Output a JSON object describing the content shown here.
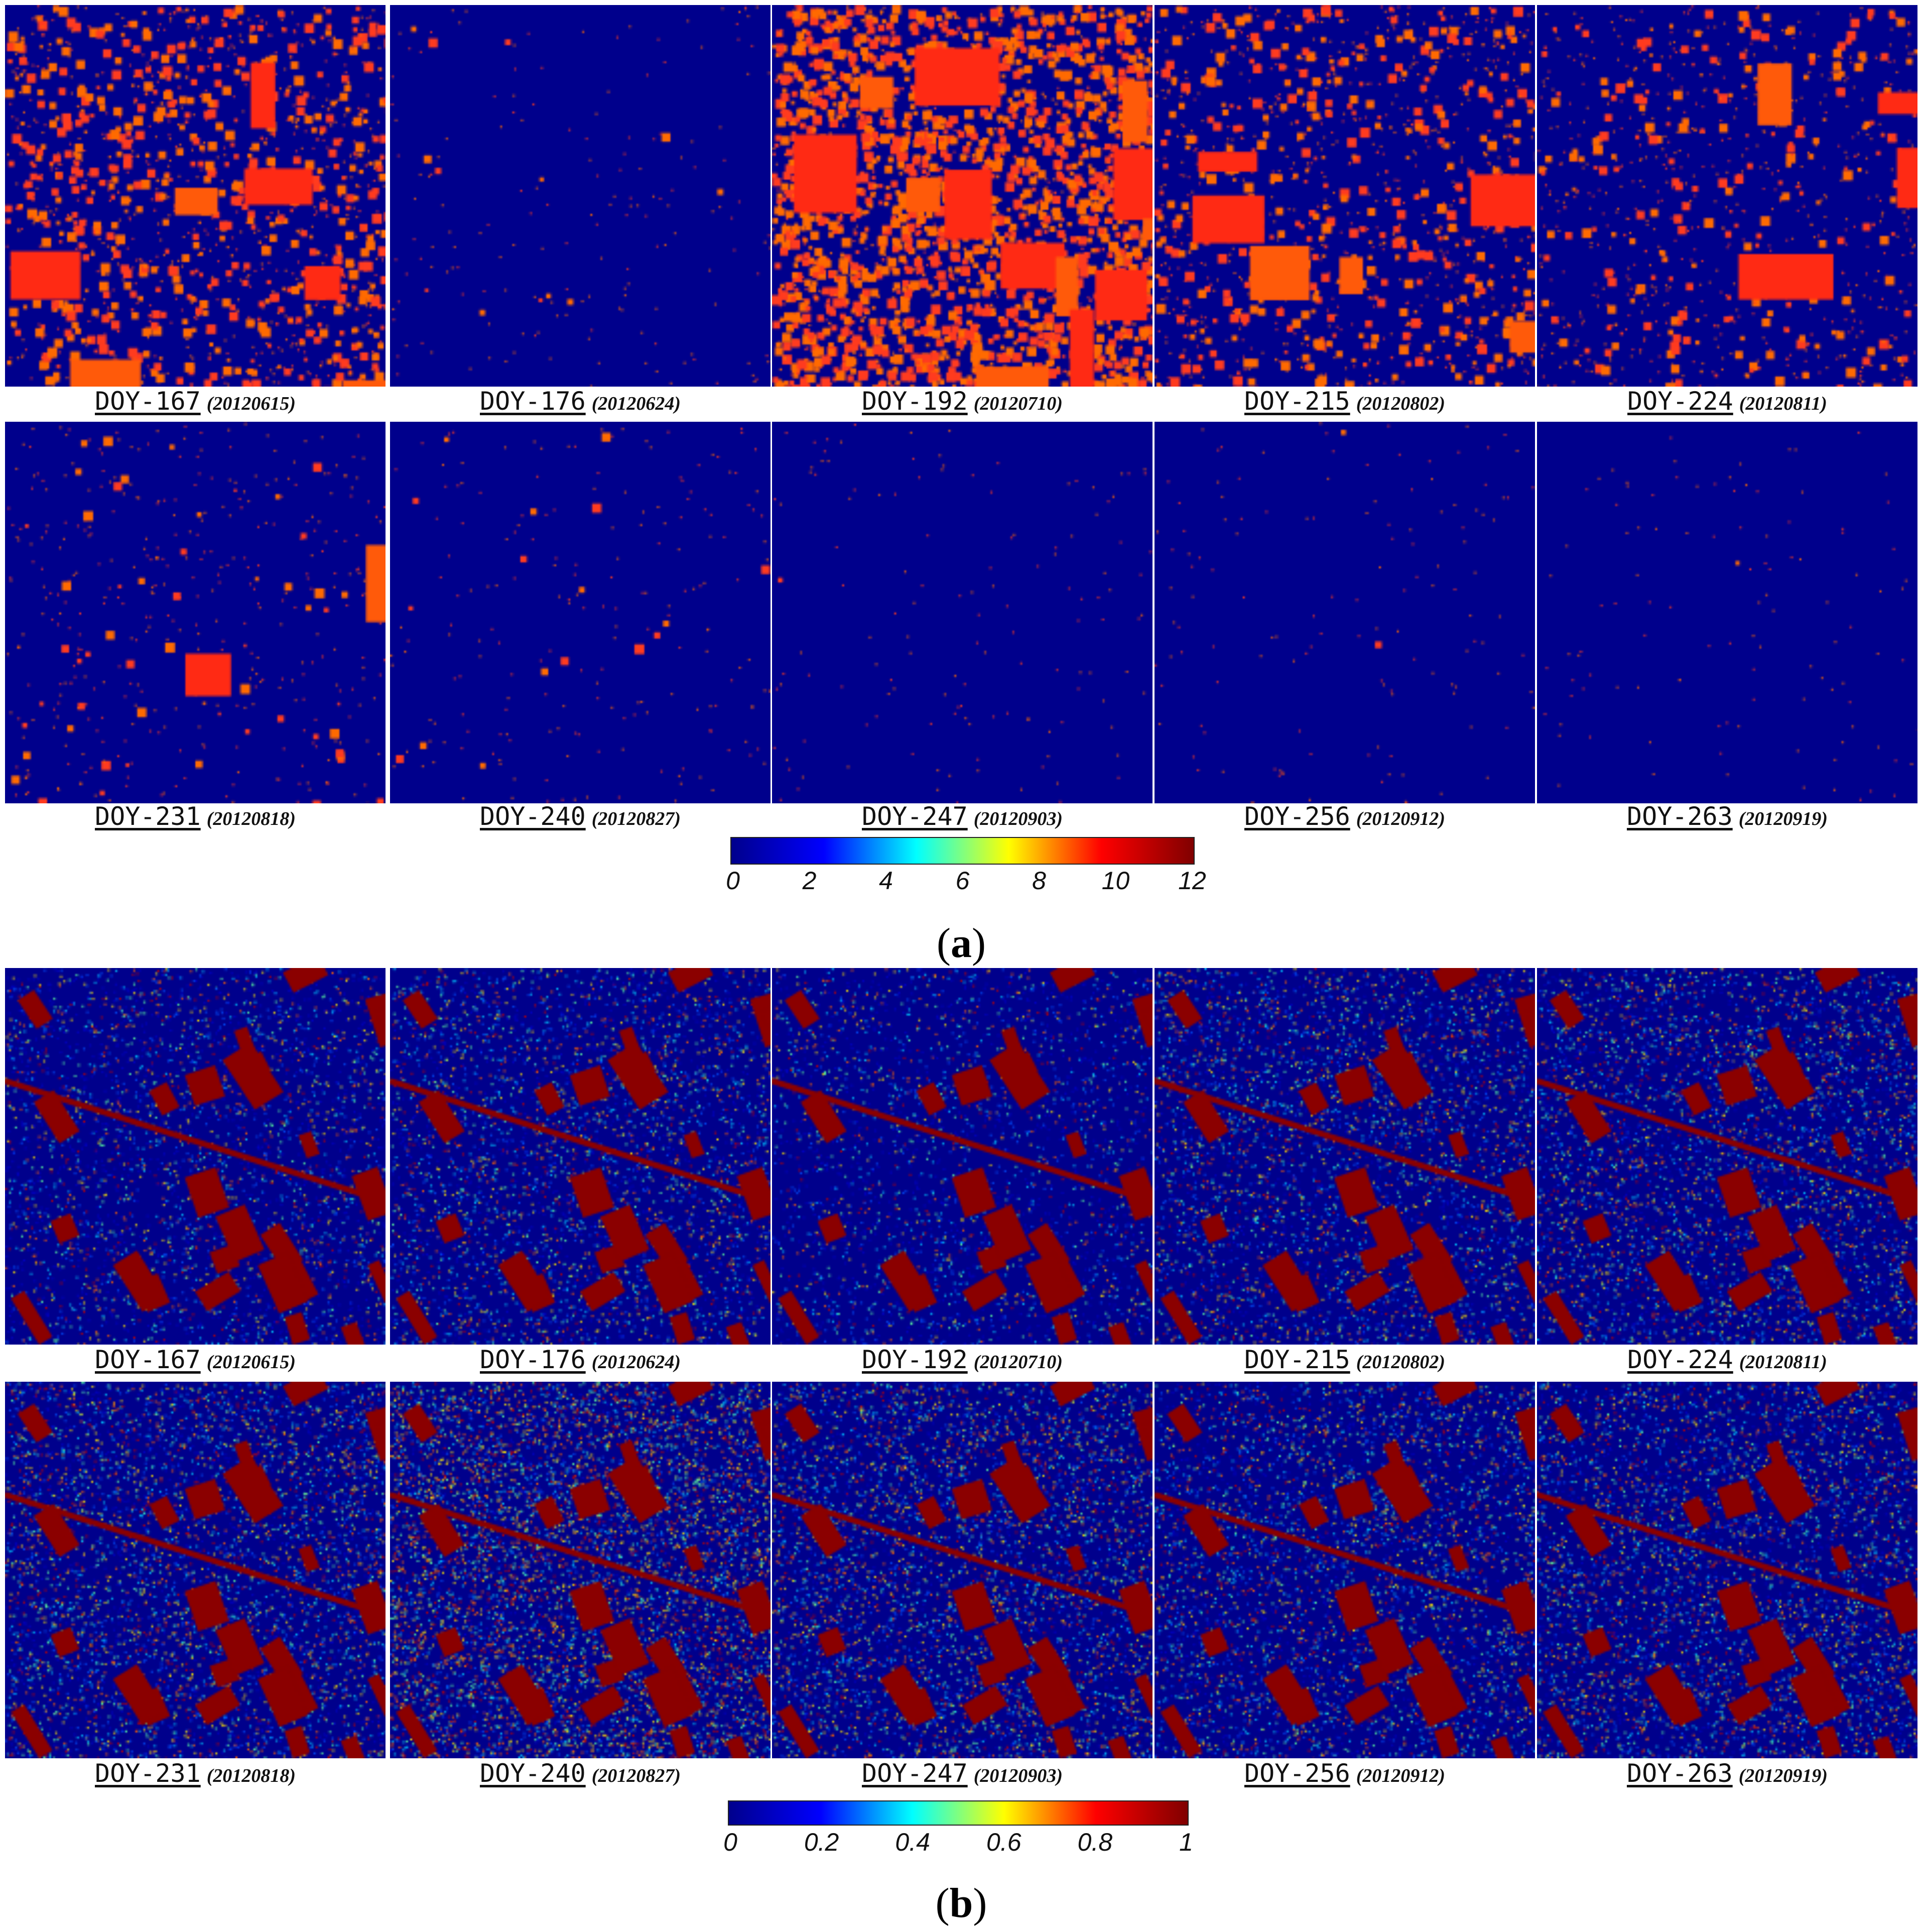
{
  "panel_a": {
    "label": "a",
    "colorbar": {
      "colors": [
        "#00008c",
        "#0000ff",
        "#00ffff",
        "#ffff00",
        "#ff0000",
        "#800000"
      ],
      "ticks": [
        "0",
        "2",
        "4",
        "6",
        "8",
        "10",
        "12"
      ]
    },
    "maps": [
      {
        "doy": "DOY-167",
        "date": "(20120615)",
        "level": 0.55
      },
      {
        "doy": "DOY-176",
        "date": "(20120624)",
        "level": 0.05
      },
      {
        "doy": "DOY-192",
        "date": "(20120710)",
        "level": 0.95
      },
      {
        "doy": "DOY-215",
        "date": "(20120802)",
        "level": 0.45
      },
      {
        "doy": "DOY-224",
        "date": "(20120811)",
        "level": 0.35
      },
      {
        "doy": "DOY-231",
        "date": "(20120818)",
        "level": 0.15
      },
      {
        "doy": "DOY-240",
        "date": "(20120827)",
        "level": 0.06
      },
      {
        "doy": "DOY-247",
        "date": "(20120903)",
        "level": 0.03
      },
      {
        "doy": "DOY-256",
        "date": "(20120912)",
        "level": 0.03
      },
      {
        "doy": "DOY-263",
        "date": "(20120919)",
        "level": 0.02
      }
    ]
  },
  "panel_b": {
    "label": "b",
    "colorbar": {
      "colors": [
        "#00008c",
        "#0000ff",
        "#00ffff",
        "#ffff00",
        "#ff0000",
        "#800000"
      ],
      "ticks": [
        "0",
        "0.2",
        "0.4",
        "0.6",
        "0.8",
        "1"
      ]
    },
    "maps": [
      {
        "doy": "DOY-167",
        "date": "(20120615)",
        "level": 0.3
      },
      {
        "doy": "DOY-176",
        "date": "(20120624)",
        "level": 0.4
      },
      {
        "doy": "DOY-192",
        "date": "(20120710)",
        "level": 0.2
      },
      {
        "doy": "DOY-215",
        "date": "(20120802)",
        "level": 0.45
      },
      {
        "doy": "DOY-224",
        "date": "(20120811)",
        "level": 0.5
      },
      {
        "doy": "DOY-231",
        "date": "(20120818)",
        "level": 0.55
      },
      {
        "doy": "DOY-240",
        "date": "(20120827)",
        "level": 0.85
      },
      {
        "doy": "DOY-247",
        "date": "(20120903)",
        "level": 0.6
      },
      {
        "doy": "DOY-256",
        "date": "(20120912)",
        "level": 0.5
      },
      {
        "doy": "DOY-263",
        "date": "(20120919)",
        "level": 0.55
      }
    ]
  }
}
